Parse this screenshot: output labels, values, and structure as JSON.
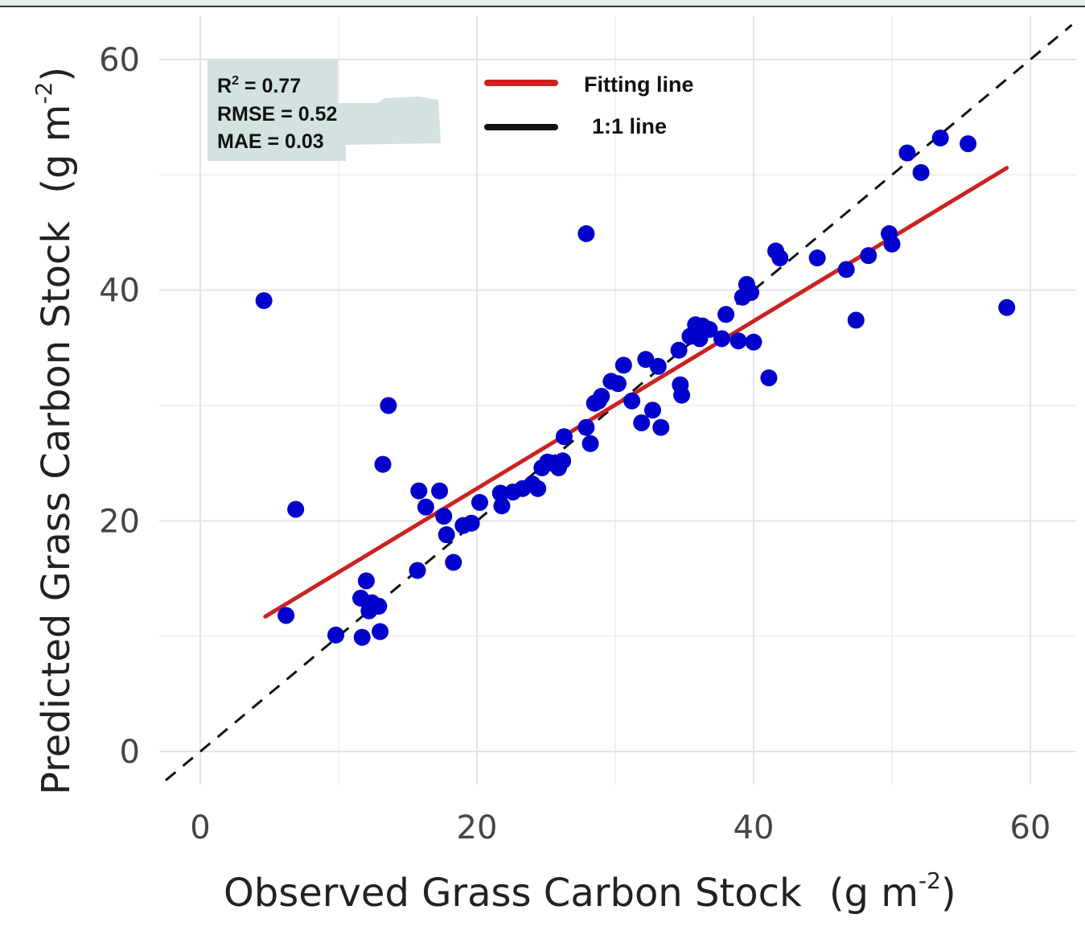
{
  "chart_data": {
    "type": "scatter",
    "xlabel": "Observed Grass Carbon Stock",
    "xlabel_unit": "(g m",
    "ylabel": "Predicted Grass Carbon Stock",
    "ylabel_unit": "(g m",
    "unit_exponent": "-2",
    "xlim": [
      -3,
      63
    ],
    "ylim": [
      -3,
      63
    ],
    "x_ticks": [
      0,
      20,
      40,
      60
    ],
    "y_ticks": [
      0,
      20,
      40,
      60
    ],
    "grid": true,
    "stats": {
      "r2_label": "R",
      "r2_sup": "2",
      "r2_value": " = 0.77",
      "rmse": "RMSE = 0.52",
      "mae": "MAE = 0.03"
    },
    "legend": {
      "position": "top-center",
      "fitting_label": "Fitting line",
      "one_to_one_label": "1:1 line"
    },
    "colors": {
      "points": "#0000cc",
      "fitting_line": "#cc2222",
      "one_to_one_line": "#111111",
      "stats_box": "#d3e2e1"
    },
    "fitting_line": {
      "x": [
        4.7,
        58.3
      ],
      "y": [
        11.7,
        50.6
      ]
    },
    "one_to_one_line": {
      "x": [
        -2.5,
        63
      ],
      "y": [
        -2.5,
        63
      ]
    },
    "points": {
      "x": [
        4.6,
        6.2,
        6.9,
        9.8,
        11.7,
        11.6,
        12.0,
        12.2,
        12.4,
        12.9,
        13.0,
        13.2,
        13.6,
        15.7,
        15.8,
        16.3,
        17.3,
        17.6,
        17.8,
        18.3,
        19.0,
        19.6,
        20.2,
        21.7,
        21.8,
        22.6,
        23.3,
        24.0,
        24.4,
        24.7,
        25.1,
        25.5,
        25.9,
        26.2,
        26.3,
        27.9,
        27.9,
        28.2,
        28.5,
        28.8,
        29.0,
        29.7,
        30.2,
        30.6,
        31.2,
        31.9,
        32.2,
        32.7,
        33.1,
        33.3,
        34.6,
        34.7,
        34.8,
        35.4,
        35.8,
        36.1,
        36.3,
        36.8,
        37.7,
        38.0,
        38.9,
        39.2,
        39.5,
        39.8,
        40.0,
        41.1,
        41.6,
        41.9,
        44.6,
        46.7,
        47.4,
        48.3,
        49.8,
        50.0,
        51.1,
        52.1,
        53.5,
        55.5,
        58.3
      ],
      "y": [
        39.1,
        11.8,
        21.0,
        10.1,
        9.9,
        13.3,
        14.8,
        12.2,
        12.9,
        12.6,
        10.4,
        24.9,
        30.0,
        15.7,
        22.6,
        21.2,
        22.6,
        20.4,
        18.8,
        16.4,
        19.6,
        19.8,
        21.6,
        22.4,
        21.3,
        22.5,
        22.8,
        23.2,
        22.8,
        24.6,
        25.1,
        25.0,
        24.6,
        25.2,
        27.3,
        44.9,
        28.1,
        26.7,
        30.2,
        30.4,
        30.8,
        32.1,
        31.9,
        33.5,
        30.4,
        28.5,
        34.0,
        29.6,
        33.4,
        28.1,
        34.8,
        31.8,
        30.9,
        36.0,
        37.0,
        35.8,
        36.9,
        36.6,
        35.8,
        37.9,
        35.6,
        39.4,
        40.5,
        39.8,
        35.5,
        32.4,
        43.4,
        42.8,
        42.8,
        41.8,
        37.4,
        43.0,
        44.9,
        44.0,
        51.9,
        50.2,
        53.2,
        52.7,
        38.5
      ]
    }
  }
}
